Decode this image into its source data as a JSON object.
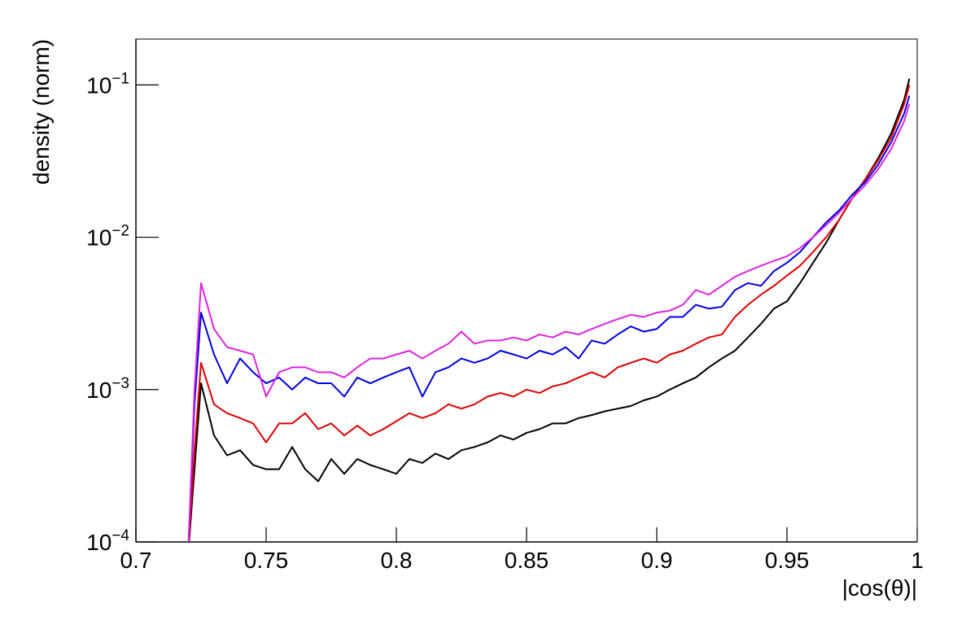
{
  "chart_data": {
    "type": "line",
    "xlabel": "|cos(θ)|",
    "ylabel": "density (norm)",
    "yscale": "log",
    "xlim": [
      0.7,
      1
    ],
    "xticks": [
      0.7,
      0.75,
      0.8,
      0.85,
      0.9,
      0.95,
      1
    ],
    "ylim": [
      0.0001,
      0.2
    ],
    "yticks": [
      {
        "value": 0.0001,
        "label": "10−4"
      },
      {
        "value": 0.001,
        "label": "10−3"
      },
      {
        "value": 0.01,
        "label": "10−2"
      },
      {
        "value": 0.1,
        "label": "10−1"
      }
    ],
    "x": [
      0.72,
      0.7225,
      0.725,
      0.73,
      0.735,
      0.74,
      0.745,
      0.75,
      0.755,
      0.76,
      0.765,
      0.77,
      0.775,
      0.78,
      0.785,
      0.79,
      0.795,
      0.8,
      0.805,
      0.81,
      0.815,
      0.82,
      0.825,
      0.83,
      0.835,
      0.84,
      0.845,
      0.85,
      0.855,
      0.86,
      0.865,
      0.87,
      0.875,
      0.88,
      0.885,
      0.89,
      0.895,
      0.9,
      0.905,
      0.91,
      0.915,
      0.92,
      0.925,
      0.93,
      0.935,
      0.94,
      0.945,
      0.95,
      0.955,
      0.96,
      0.965,
      0.97,
      0.975,
      0.98,
      0.985,
      0.99,
      0.995,
      0.997
    ],
    "series": [
      {
        "color": "#000000",
        "values": [
          8e-05,
          0.0003,
          0.0011,
          0.0005,
          0.00037,
          0.0004,
          0.00032,
          0.0003,
          0.0003,
          0.00042,
          0.0003,
          0.00025,
          0.00035,
          0.00028,
          0.00035,
          0.00032,
          0.0003,
          0.00028,
          0.00035,
          0.00033,
          0.00038,
          0.00035,
          0.0004,
          0.00042,
          0.00045,
          0.0005,
          0.00047,
          0.00052,
          0.00055,
          0.0006,
          0.0006,
          0.00065,
          0.00068,
          0.00072,
          0.00075,
          0.00078,
          0.00085,
          0.0009,
          0.001,
          0.0011,
          0.0012,
          0.0014,
          0.0016,
          0.0018,
          0.0022,
          0.0027,
          0.0034,
          0.0038,
          0.005,
          0.0068,
          0.0092,
          0.013,
          0.018,
          0.024,
          0.033,
          0.048,
          0.08,
          0.11
        ]
      },
      {
        "color": "#dd0000",
        "values": [
          8e-05,
          0.0004,
          0.0015,
          0.0008,
          0.0007,
          0.00065,
          0.0006,
          0.00045,
          0.0006,
          0.0006,
          0.0007,
          0.00055,
          0.0006,
          0.0005,
          0.00058,
          0.0005,
          0.00055,
          0.00062,
          0.0007,
          0.00065,
          0.0007,
          0.0008,
          0.00075,
          0.0008,
          0.0009,
          0.00095,
          0.0009,
          0.001,
          0.00095,
          0.00105,
          0.0011,
          0.0012,
          0.0013,
          0.0012,
          0.0014,
          0.0015,
          0.0016,
          0.0015,
          0.0017,
          0.0018,
          0.002,
          0.0022,
          0.0023,
          0.003,
          0.0036,
          0.0042,
          0.0048,
          0.0056,
          0.0065,
          0.008,
          0.01,
          0.013,
          0.018,
          0.024,
          0.032,
          0.045,
          0.075,
          0.1
        ]
      },
      {
        "color": "#0000dd",
        "values": [
          8e-05,
          0.0008,
          0.0032,
          0.0017,
          0.0011,
          0.0016,
          0.0013,
          0.0011,
          0.0012,
          0.001,
          0.0012,
          0.0011,
          0.0011,
          0.0009,
          0.0012,
          0.0011,
          0.0012,
          0.0013,
          0.0014,
          0.0009,
          0.0013,
          0.0014,
          0.0016,
          0.0015,
          0.0016,
          0.0018,
          0.0017,
          0.0016,
          0.0018,
          0.0017,
          0.0019,
          0.0016,
          0.0021,
          0.002,
          0.0023,
          0.0026,
          0.0024,
          0.0025,
          0.003,
          0.003,
          0.0036,
          0.0034,
          0.0035,
          0.0045,
          0.005,
          0.0048,
          0.006,
          0.0068,
          0.008,
          0.01,
          0.0125,
          0.015,
          0.019,
          0.023,
          0.03,
          0.042,
          0.065,
          0.085
        ]
      },
      {
        "color": "#dd22dd",
        "values": [
          8e-05,
          0.001,
          0.005,
          0.0025,
          0.0019,
          0.0018,
          0.0017,
          0.0009,
          0.0013,
          0.0014,
          0.0014,
          0.0013,
          0.0013,
          0.0012,
          0.0014,
          0.0016,
          0.0016,
          0.0017,
          0.0018,
          0.0016,
          0.0018,
          0.002,
          0.0024,
          0.002,
          0.0021,
          0.0021,
          0.0022,
          0.0021,
          0.0023,
          0.0022,
          0.0024,
          0.0023,
          0.0025,
          0.0027,
          0.0029,
          0.0031,
          0.003,
          0.0032,
          0.0033,
          0.0036,
          0.0045,
          0.0042,
          0.0048,
          0.0055,
          0.006,
          0.0065,
          0.007,
          0.0075,
          0.0085,
          0.01,
          0.012,
          0.0145,
          0.018,
          0.022,
          0.028,
          0.038,
          0.058,
          0.075
        ]
      }
    ]
  }
}
